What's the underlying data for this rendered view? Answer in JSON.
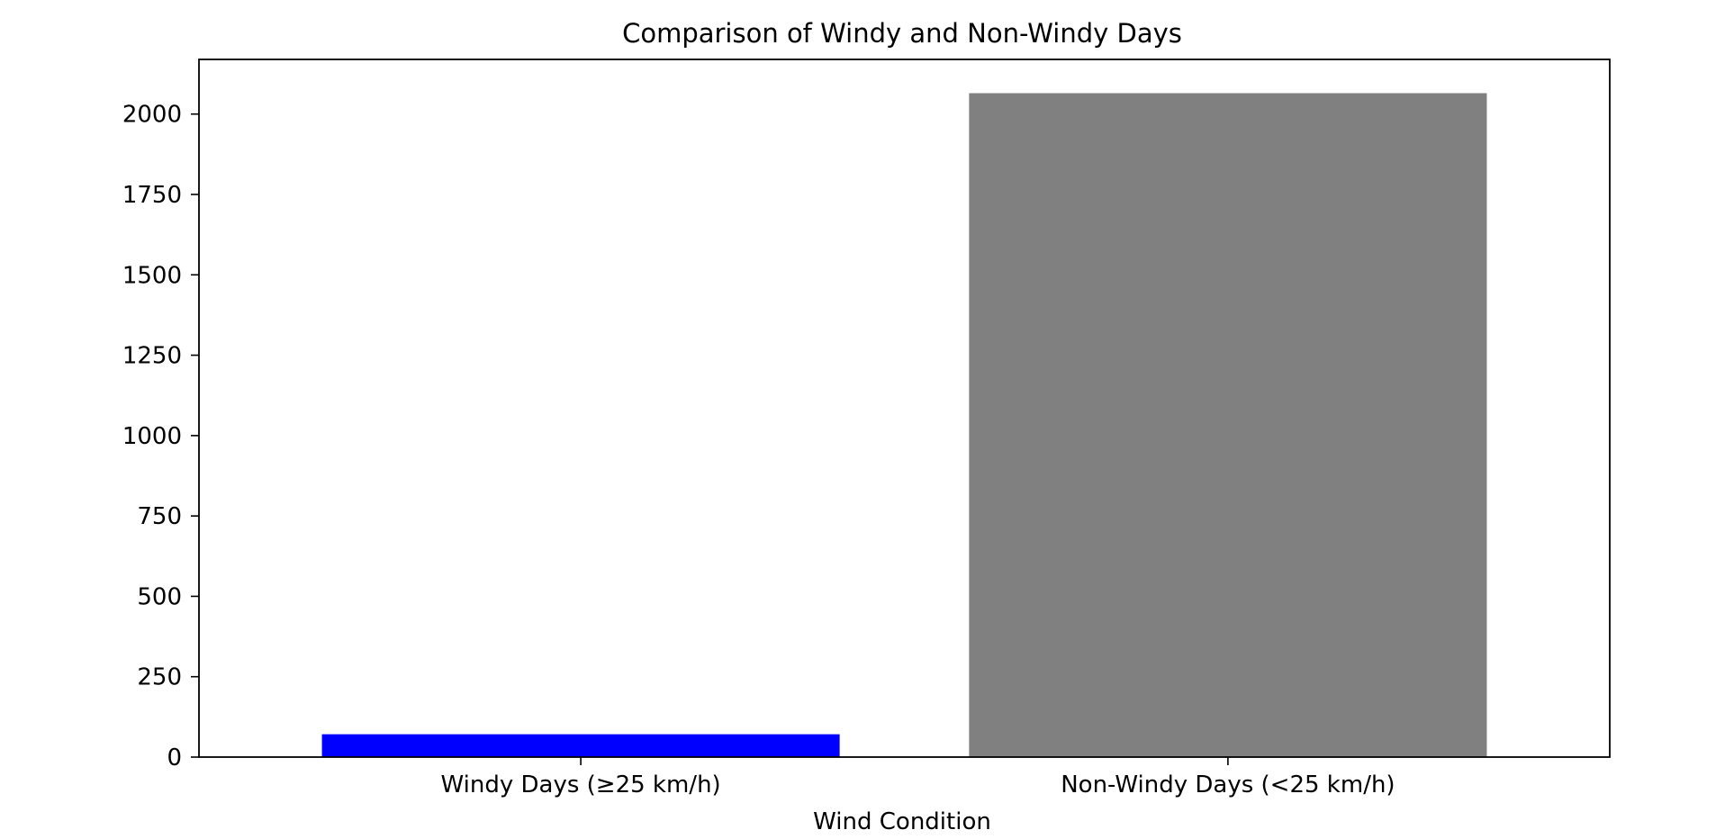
{
  "chart_data": {
    "type": "bar",
    "title": "Comparison of Windy and Non-Windy Days",
    "xlabel": "Wind Condition",
    "ylabel": "",
    "categories": [
      "Windy Days (≥25 km/h)",
      "Non-Windy Days (<25 km/h)"
    ],
    "values": [
      71,
      2065
    ],
    "colors": [
      "#0000ff",
      "#808080"
    ],
    "ylim": [
      0,
      2170
    ],
    "yticks": [
      0,
      250,
      500,
      750,
      1000,
      1250,
      1500,
      1750,
      2000
    ],
    "grid": false,
    "legend": "none"
  }
}
